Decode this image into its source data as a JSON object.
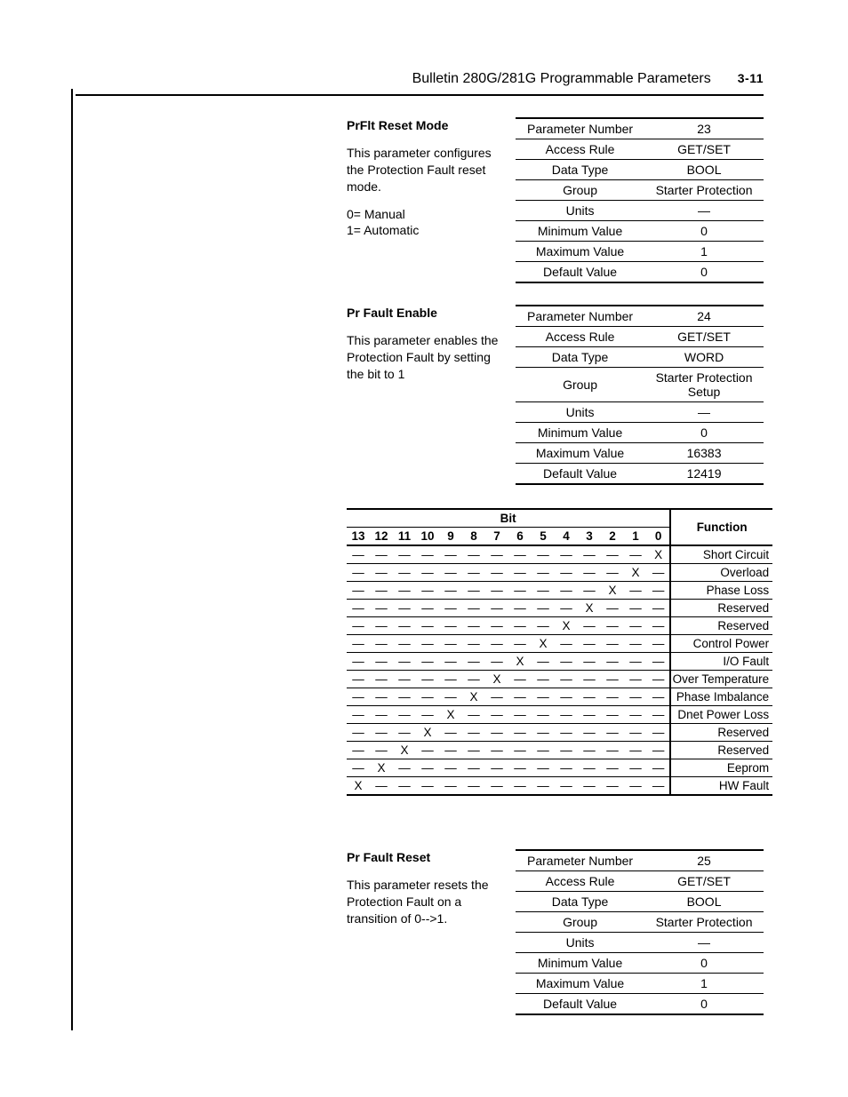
{
  "header": {
    "title": "Bulletin 280G/281G Programmable Parameters",
    "page": "3-11"
  },
  "param_labels": [
    "Parameter Number",
    "Access Rule",
    "Data Type",
    "Group",
    "Units",
    "Minimum Value",
    "Maximum Value",
    "Default Value"
  ],
  "sections": [
    {
      "title": "PrFlt Reset Mode",
      "desc1": "This parameter configures the Protection Fault reset mode.",
      "desc2": "0= Manual",
      "desc3": "1= Automatic",
      "values": [
        "23",
        "GET/SET",
        "BOOL",
        "Starter Protection",
        "—",
        "0",
        "1",
        "0"
      ]
    },
    {
      "title": "Pr Fault Enable",
      "desc1": "This parameter enables the Protection Fault by setting the bit to 1",
      "desc2": "",
      "desc3": "",
      "values": [
        "24",
        "GET/SET",
        "WORD",
        "Starter Protection Setup",
        "—",
        "0",
        "16383",
        "12419"
      ]
    },
    {
      "title": "Pr Fault Reset",
      "desc1": "This parameter resets the Protection Fault on a transition of 0-->1.",
      "desc2": "",
      "desc3": "",
      "values": [
        "25",
        "GET/SET",
        "BOOL",
        "Starter Protection",
        "—",
        "0",
        "1",
        "0"
      ]
    }
  ],
  "bit_table": {
    "bit_label": "Bit",
    "function_label": "Function",
    "headers": [
      "13",
      "12",
      "11",
      "10",
      "9",
      "8",
      "7",
      "6",
      "5",
      "4",
      "3",
      "2",
      "1",
      "0"
    ],
    "rows": [
      {
        "bit": 0,
        "func": "Short Circuit"
      },
      {
        "bit": 1,
        "func": "Overload"
      },
      {
        "bit": 2,
        "func": "Phase Loss"
      },
      {
        "bit": 3,
        "func": "Reserved"
      },
      {
        "bit": 4,
        "func": "Reserved"
      },
      {
        "bit": 5,
        "func": "Control Power"
      },
      {
        "bit": 6,
        "func": "I/O Fault"
      },
      {
        "bit": 7,
        "func": "Over Temperature"
      },
      {
        "bit": 8,
        "func": "Phase Imbalance"
      },
      {
        "bit": 9,
        "func": "Dnet Power Loss"
      },
      {
        "bit": 10,
        "func": "Reserved"
      },
      {
        "bit": 11,
        "func": "Reserved"
      },
      {
        "bit": 12,
        "func": "Eeprom"
      },
      {
        "bit": 13,
        "func": "HW Fault"
      }
    ]
  }
}
